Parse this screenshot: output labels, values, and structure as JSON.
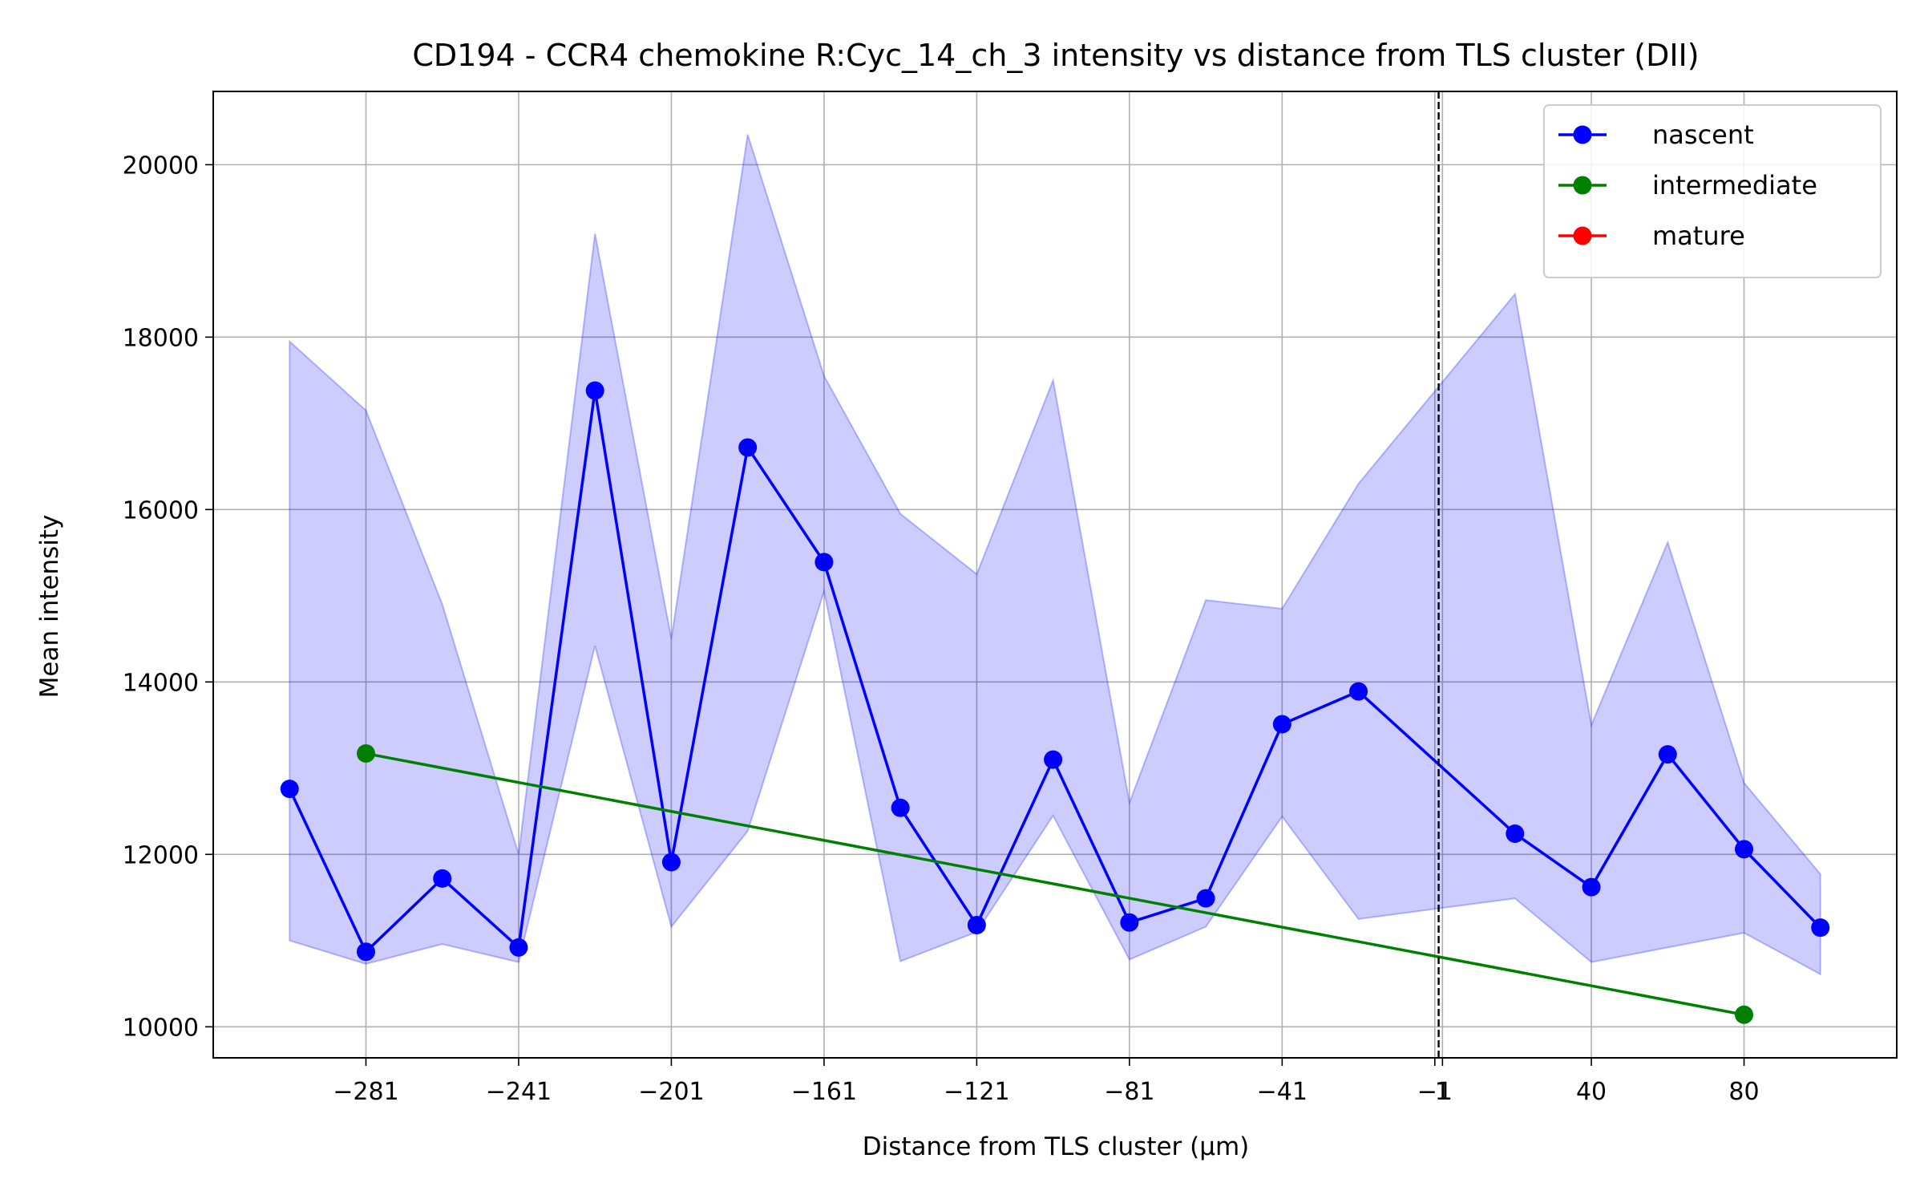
{
  "chart_data": {
    "type": "line",
    "title": "CD194 - CCR4 chemokine R:Cyc_14_ch_3 intensity vs distance from TLS cluster (DII)",
    "xlabel": "Distance from TLS cluster (μm)",
    "ylabel": "Mean intensity",
    "xlim": [
      -321,
      120
    ],
    "ylim": [
      9640,
      20850
    ],
    "x_ticks": [
      -281,
      -241,
      -201,
      -161,
      -121,
      -81,
      -41,
      -1,
      1,
      40,
      80
    ],
    "x_tick_labels": [
      "−281",
      "−241",
      "−201",
      "−161",
      "−121",
      "−81",
      "−41",
      "−1",
      "1",
      "40",
      "80"
    ],
    "y_ticks": [
      10000,
      12000,
      14000,
      16000,
      18000,
      20000
    ],
    "y_tick_labels": [
      "10000",
      "12000",
      "14000",
      "16000",
      "18000",
      "20000"
    ],
    "grid": true,
    "legend_position": "top-right",
    "vline": {
      "x": 0,
      "style": "dashed",
      "color": "#000000"
    },
    "series": [
      {
        "name": "nascent",
        "color": "#0000ff",
        "x": [
          -301,
          -281,
          -261,
          -241,
          -221,
          -201,
          -181,
          -161,
          -141,
          -121,
          -101,
          -81,
          -61,
          -41,
          -21,
          20,
          40,
          60,
          80,
          100
        ],
        "y": [
          12760,
          10870,
          11720,
          10920,
          17380,
          11910,
          16720,
          15390,
          12540,
          11180,
          13100,
          11210,
          11490,
          13510,
          13890,
          12240,
          11620,
          13160,
          12060,
          11150
        ],
        "band_upper": [
          17950,
          17150,
          14900,
          12000,
          19200,
          14500,
          20350,
          17550,
          15950,
          15250,
          17500,
          12600,
          14950,
          14850,
          16300,
          18500,
          13500,
          15620,
          12830,
          11770
        ],
        "band_lower": [
          11000,
          10730,
          10960,
          10750,
          14420,
          11160,
          12270,
          15050,
          10760,
          11100,
          12450,
          10780,
          11160,
          12440,
          11250,
          11490,
          10750,
          10920,
          11090,
          10610
        ],
        "band_color": "#0000ff"
      },
      {
        "name": "intermediate",
        "color": "#008000",
        "x": [
          -281,
          80
        ],
        "y": [
          13170,
          10140
        ]
      },
      {
        "name": "mature",
        "color": "#ff0000",
        "x": [],
        "y": []
      }
    ]
  }
}
